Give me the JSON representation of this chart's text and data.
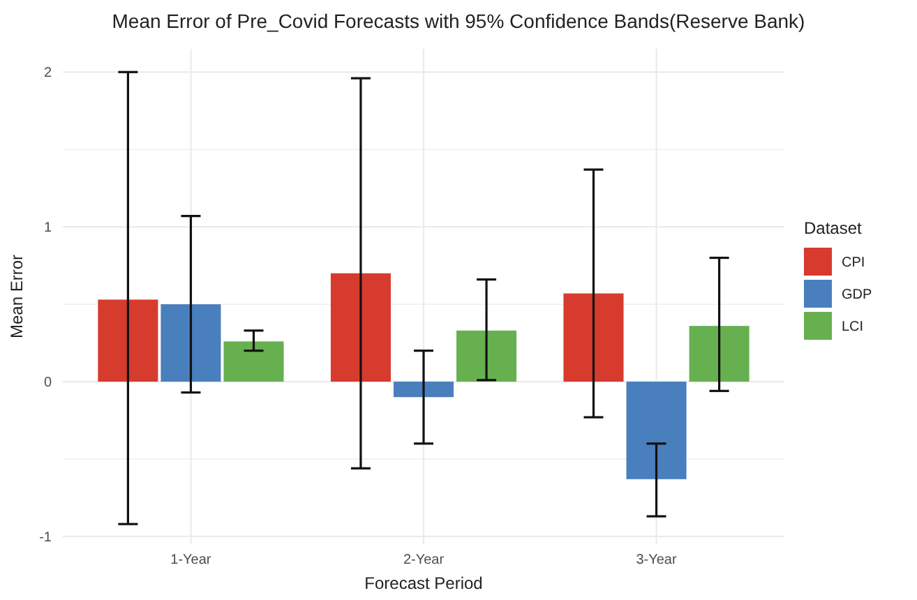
{
  "chart_data": {
    "type": "bar",
    "title": "Mean Error of Pre_Covid Forecasts with 95% Confidence Bands(Reserve Bank)",
    "xlabel": "Forecast Period",
    "ylabel": "Mean Error",
    "legend_title": "Dataset",
    "categories": [
      "1-Year",
      "2-Year",
      "3-Year"
    ],
    "series": [
      {
        "name": "CPI",
        "color": "#d63b2d",
        "values": [
          0.53,
          0.7,
          0.57
        ],
        "errors": [
          [
            -0.92,
            2.0
          ],
          [
            -0.56,
            1.96
          ],
          [
            -0.23,
            1.37
          ]
        ]
      },
      {
        "name": "GDP",
        "color": "#4a7fbd",
        "values": [
          0.5,
          -0.1,
          -0.63
        ],
        "errors": [
          [
            -0.07,
            1.07
          ],
          [
            -0.4,
            0.2
          ],
          [
            -0.87,
            -0.4
          ]
        ]
      },
      {
        "name": "LCI",
        "color": "#67b04f",
        "values": [
          0.26,
          0.33,
          0.36
        ],
        "errors": [
          [
            0.2,
            0.33
          ],
          [
            0.01,
            0.66
          ],
          [
            -0.06,
            0.8
          ]
        ]
      }
    ],
    "ylim": [
      -1.05,
      2.15
    ],
    "yticks": [
      -1,
      {
        "value": -0.5,
        "label": null
      },
      0,
      {
        "value": 0.5,
        "label": null
      },
      1,
      {
        "value": 1.5,
        "label": null
      },
      2
    ],
    "grid": true,
    "legend": "right"
  }
}
